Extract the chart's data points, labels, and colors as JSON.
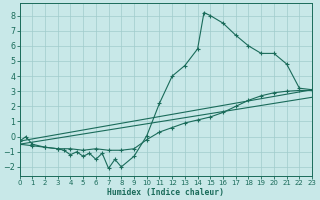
{
  "xlabel": "Humidex (Indice chaleur)",
  "xlim": [
    0,
    23
  ],
  "ylim": [
    -2.6,
    8.8
  ],
  "yticks": [
    -2,
    -1,
    0,
    1,
    2,
    3,
    4,
    5,
    6,
    7,
    8
  ],
  "xticks": [
    0,
    1,
    2,
    3,
    4,
    5,
    6,
    7,
    8,
    9,
    10,
    11,
    12,
    13,
    14,
    15,
    16,
    17,
    18,
    19,
    20,
    21,
    22,
    23
  ],
  "bg_color": "#c8e8e8",
  "line_color": "#1a6b5a",
  "grid_color": "#a0cccc",
  "curve_top": {
    "x": [
      0,
      0.5,
      1,
      2,
      3,
      3.5,
      4,
      4.5,
      5,
      5.5,
      6,
      6.5,
      7,
      7.5,
      8,
      9,
      10,
      11,
      12,
      13,
      14,
      14.5,
      15,
      16,
      17,
      18,
      19,
      20,
      21,
      22,
      23
    ],
    "y": [
      -0.3,
      0.0,
      -0.5,
      -0.7,
      -0.8,
      -0.9,
      -1.2,
      -1.0,
      -1.3,
      -1.1,
      -1.5,
      -1.1,
      -2.1,
      -1.5,
      -2.0,
      -1.3,
      0.05,
      2.2,
      4.0,
      4.7,
      5.8,
      8.2,
      8.0,
      7.5,
      6.7,
      6.0,
      5.5,
      5.5,
      4.8,
      3.2,
      3.1
    ]
  },
  "curve_bot": {
    "x": [
      0,
      1,
      2,
      3,
      4,
      5,
      6,
      7,
      8,
      9,
      10,
      11,
      12,
      13,
      14,
      15,
      16,
      17,
      18,
      19,
      20,
      21,
      22,
      23
    ],
    "y": [
      -0.5,
      -0.6,
      -0.7,
      -0.8,
      -0.8,
      -0.9,
      -0.8,
      -0.9,
      -0.9,
      -0.8,
      -0.2,
      0.3,
      0.6,
      0.9,
      1.1,
      1.3,
      1.6,
      2.0,
      2.4,
      2.7,
      2.9,
      3.0,
      3.05,
      3.05
    ]
  },
  "curve_mid_upper": {
    "x": [
      0,
      23
    ],
    "y": [
      -0.3,
      3.1
    ]
  },
  "curve_mid_lower": {
    "x": [
      0,
      23
    ],
    "y": [
      -0.5,
      2.6
    ]
  }
}
